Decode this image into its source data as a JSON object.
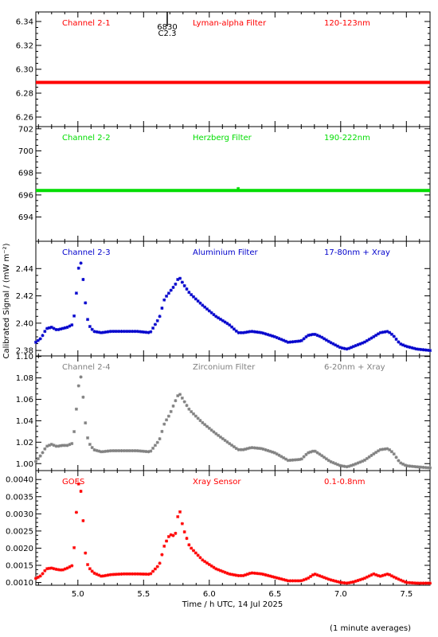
{
  "figure": {
    "ylabel": "Calibrated Signal / (mW m⁻²)",
    "xlabel": "Time / h UTC, 14 Jul 2025",
    "footnote": "(1 minute averages)",
    "marker_label_top": "6830",
    "marker_label_bottom": "C2.3",
    "marker_x": 5.68
  },
  "chart_data": [
    {
      "type": "scatter",
      "panel": "Channel 2-1",
      "labels": [
        "Channel 2-1",
        "Lyman-alpha Filter",
        "120-123nm"
      ],
      "color": "#ff0000",
      "xlim": [
        4.68,
        7.68
      ],
      "ylim": [
        6.252,
        6.348
      ],
      "yticks": [
        6.26,
        6.28,
        6.3,
        6.32,
        6.34
      ],
      "yticklabels": [
        "6.26",
        "6.28",
        "6.30",
        "6.32",
        "6.34"
      ],
      "ymode": "flat",
      "level": 6.289
    },
    {
      "type": "scatter",
      "panel": "Channel 2-2",
      "labels": [
        "Channel 2-2",
        "Herzberg Filter",
        "190-222nm"
      ],
      "color": "#00dd00",
      "xlim": [
        4.68,
        7.68
      ],
      "ylim": [
        691.8,
        702.2
      ],
      "yticks": [
        694,
        696,
        698,
        700,
        702
      ],
      "yticklabels": [
        "694",
        "696",
        "698",
        "700",
        "702"
      ],
      "ymode": "flat",
      "level": 696.4
    },
    {
      "type": "scatter",
      "panel": "Channel 2-3",
      "labels": [
        "Channel 2-3",
        "Aluminium Filter",
        "17-80nm + Xray"
      ],
      "color": "#0000cc",
      "xlim": [
        4.68,
        7.68
      ],
      "ylim": [
        2.376,
        2.46
      ],
      "yticks": [
        2.38,
        2.4,
        2.42,
        2.44
      ],
      "yticklabels": [
        "2.38",
        "2.40",
        "2.42",
        "2.44"
      ],
      "ymode": "curve",
      "x": [
        4.68,
        4.72,
        4.76,
        4.8,
        4.84,
        4.88,
        4.92,
        4.96,
        4.98,
        5.0,
        5.02,
        5.04,
        5.06,
        5.08,
        5.12,
        5.18,
        5.25,
        5.35,
        5.45,
        5.55,
        5.62,
        5.66,
        5.7,
        5.74,
        5.77,
        5.8,
        5.85,
        5.95,
        6.05,
        6.15,
        6.22,
        6.26,
        6.32,
        6.4,
        6.5,
        6.6,
        6.7,
        6.75,
        6.8,
        6.85,
        6.92,
        7.0,
        7.05,
        7.1,
        7.18,
        7.25,
        7.3,
        7.36,
        7.4,
        7.45,
        7.5,
        7.58,
        7.68
      ],
      "y": [
        2.386,
        2.389,
        2.396,
        2.397,
        2.395,
        2.396,
        2.397,
        2.399,
        2.41,
        2.438,
        2.446,
        2.432,
        2.412,
        2.399,
        2.394,
        2.393,
        2.394,
        2.394,
        2.394,
        2.393,
        2.404,
        2.418,
        2.423,
        2.428,
        2.434,
        2.429,
        2.422,
        2.413,
        2.405,
        2.399,
        2.393,
        2.393,
        2.394,
        2.393,
        2.39,
        2.386,
        2.387,
        2.391,
        2.392,
        2.39,
        2.386,
        2.382,
        2.381,
        2.383,
        2.386,
        2.39,
        2.393,
        2.394,
        2.391,
        2.385,
        2.383,
        2.381,
        2.38
      ]
    },
    {
      "type": "scatter",
      "panel": "Channel 2-4",
      "labels": [
        "Channel 2-4",
        "Zirconium Filter",
        "6-20nm + Xray"
      ],
      "color": "#808080",
      "xlim": [
        4.68,
        7.68
      ],
      "ylim": [
        0.9935,
        1.1005
      ],
      "yticks": [
        1.0,
        1.02,
        1.04,
        1.06,
        1.08,
        1.1
      ],
      "yticklabels": [
        "1.00",
        "1.02",
        "1.04",
        "1.06",
        "1.08",
        "1.10"
      ],
      "ymode": "curve",
      "x": [
        4.68,
        4.72,
        4.76,
        4.8,
        4.84,
        4.88,
        4.92,
        4.96,
        4.98,
        5.0,
        5.02,
        5.04,
        5.06,
        5.08,
        5.12,
        5.18,
        5.25,
        5.35,
        5.45,
        5.55,
        5.62,
        5.66,
        5.7,
        5.74,
        5.77,
        5.8,
        5.85,
        5.95,
        6.05,
        6.15,
        6.22,
        6.26,
        6.32,
        6.4,
        6.5,
        6.6,
        6.7,
        6.75,
        6.8,
        6.85,
        6.92,
        7.0,
        7.05,
        7.1,
        7.18,
        7.25,
        7.3,
        7.36,
        7.4,
        7.45,
        7.5,
        7.58,
        7.68
      ],
      "y": [
        1.002,
        1.008,
        1.016,
        1.018,
        1.016,
        1.017,
        1.017,
        1.019,
        1.038,
        1.068,
        1.084,
        1.062,
        1.034,
        1.02,
        1.013,
        1.011,
        1.012,
        1.012,
        1.012,
        1.011,
        1.022,
        1.038,
        1.046,
        1.058,
        1.066,
        1.06,
        1.05,
        1.038,
        1.028,
        1.019,
        1.013,
        1.013,
        1.015,
        1.014,
        1.01,
        1.003,
        1.004,
        1.01,
        1.012,
        1.008,
        1.002,
        0.998,
        0.997,
        0.999,
        1.003,
        1.009,
        1.013,
        1.014,
        1.01,
        1.001,
        0.998,
        0.997,
        0.996
      ]
    },
    {
      "type": "scatter",
      "panel": "GOES",
      "labels": [
        "GOES",
        "Xray Sensor",
        "0.1-0.8nm"
      ],
      "color": "#ff0000",
      "xlim": [
        4.68,
        7.68
      ],
      "ylim": [
        0.00092,
        0.00426
      ],
      "yticks": [
        0.001,
        0.0015,
        0.002,
        0.0025,
        0.003,
        0.0035,
        0.004
      ],
      "yticklabels": [
        "0.0010",
        "0.0015",
        "0.0020",
        "0.0025",
        "0.0030",
        "0.0035",
        "0.0040"
      ],
      "ymode": "curve",
      "x": [
        4.68,
        4.72,
        4.76,
        4.8,
        4.84,
        4.88,
        4.92,
        4.96,
        4.98,
        5.0,
        5.02,
        5.04,
        5.06,
        5.08,
        5.12,
        5.18,
        5.25,
        5.35,
        5.45,
        5.55,
        5.62,
        5.66,
        5.7,
        5.74,
        5.77,
        5.8,
        5.85,
        5.95,
        6.05,
        6.15,
        6.22,
        6.26,
        6.32,
        6.4,
        6.5,
        6.6,
        6.7,
        6.75,
        6.8,
        6.85,
        6.92,
        7.0,
        7.05,
        7.1,
        7.18,
        7.25,
        7.3,
        7.36,
        7.4,
        7.45,
        7.5,
        7.58,
        7.68
      ],
      "y": [
        0.00112,
        0.0012,
        0.0014,
        0.00142,
        0.00138,
        0.00136,
        0.00142,
        0.0015,
        0.0024,
        0.0039,
        0.0038,
        0.0028,
        0.0017,
        0.00145,
        0.00128,
        0.00118,
        0.00123,
        0.00125,
        0.00125,
        0.00124,
        0.00152,
        0.0021,
        0.0024,
        0.00235,
        0.0032,
        0.0026,
        0.00205,
        0.00165,
        0.0014,
        0.00125,
        0.0012,
        0.0012,
        0.00128,
        0.00125,
        0.00115,
        0.00105,
        0.00105,
        0.00112,
        0.00125,
        0.00118,
        0.00108,
        0.001,
        0.00098,
        0.00102,
        0.00112,
        0.00125,
        0.00118,
        0.00125,
        0.00117,
        0.00108,
        0.001,
        0.00098,
        0.00098
      ]
    }
  ],
  "xaxis": {
    "xlim": [
      4.68,
      7.68
    ],
    "ticks": [
      5.0,
      5.5,
      6.0,
      6.5,
      7.0,
      7.5
    ],
    "ticklabels": [
      "5.0",
      "5.5",
      "6.0",
      "6.5",
      "7.0",
      "7.5"
    ]
  }
}
